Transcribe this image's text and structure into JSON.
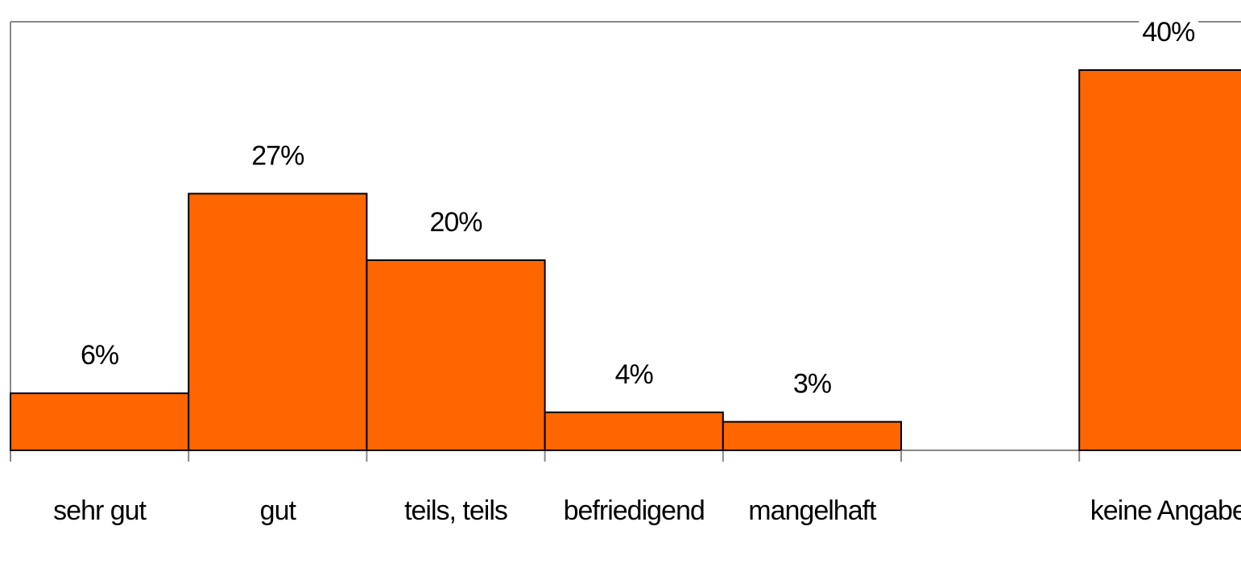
{
  "chart_data": {
    "type": "bar",
    "categories": [
      "sehr gut",
      "gut",
      "teils, teils",
      "befriedigend",
      "mangelhaft",
      null,
      "keine Angabe"
    ],
    "values": [
      6,
      27,
      20,
      4,
      3,
      null,
      40
    ],
    "value_labels": [
      "6%",
      "27%",
      "20%",
      "4%",
      "3%",
      null,
      "40%"
    ],
    "color": "#ff6600",
    "ylim": [
      0,
      40
    ]
  }
}
